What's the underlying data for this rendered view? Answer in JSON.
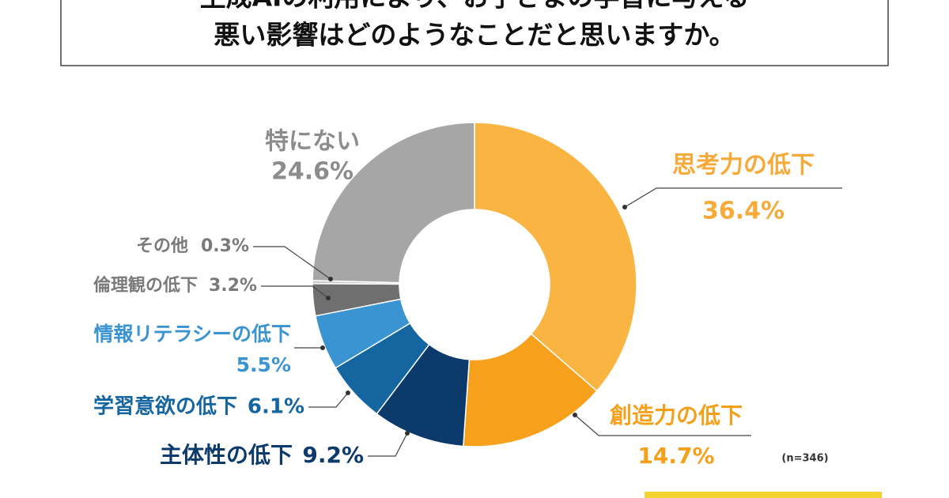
{
  "chart_data": {
    "type": "donut",
    "title": [
      "生成AIの利用により、お子さまの学習に与える",
      "悪い影響はどのようなことだと思いますか。"
    ],
    "categories": [
      "思考力の低下",
      "創造力の低下",
      "主体性の低下",
      "学習意欲の低下",
      "情報リテラシーの低下",
      "倫理観の低下",
      "その他",
      "特にない"
    ],
    "values": [
      36.4,
      14.7,
      9.2,
      6.1,
      5.5,
      3.2,
      0.3,
      24.6
    ],
    "value_labels": [
      "36.4%",
      "14.7%",
      "9.2%",
      "6.1%",
      "5.5%",
      "3.2%",
      "0.3%",
      "24.6%"
    ],
    "colors": [
      "#f9b442",
      "#f7a01b",
      "#0c3a6b",
      "#1565a1",
      "#3a94d1",
      "#6f6f6f",
      "#c8c8c8",
      "#a6a6a6"
    ],
    "label_colors": [
      "#f5aa3a",
      "#f5a01b",
      "#0c3a6b",
      "#1565a1",
      "#3a94d1",
      "#7a7a7a",
      "#7a7a7a",
      "#8c8c8c"
    ],
    "note": "(n=346)"
  }
}
